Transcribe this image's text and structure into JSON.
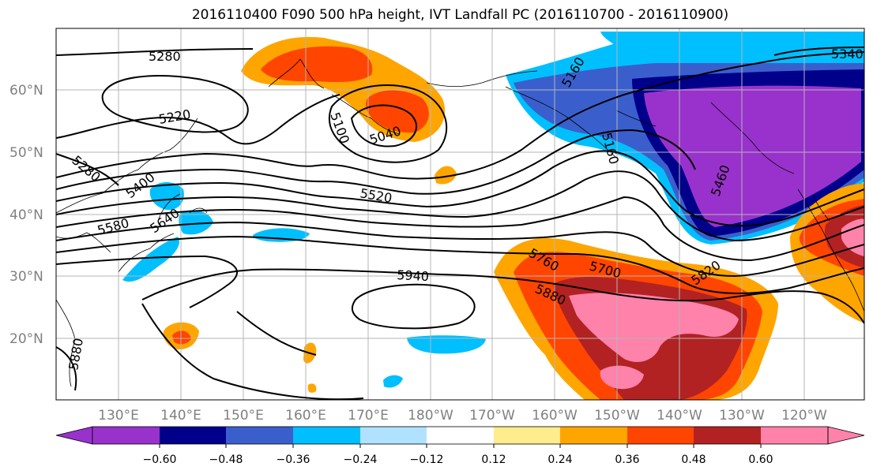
{
  "title": "2016110400 F090 500 hPa height, IVT Landfall PC (2016110700 - 2016110900)",
  "map": {
    "lat_labels": [
      "60°N",
      "50°N",
      "40°N",
      "30°N",
      "20°N"
    ],
    "lon_labels": [
      "130°E",
      "140°E",
      "150°E",
      "160°E",
      "170°E",
      "180°W",
      "170°W",
      "160°W",
      "150°W",
      "140°W",
      "130°W",
      "120°W"
    ],
    "contour_labels": [
      "5280",
      "5220",
      "5280",
      "5400",
      "5580",
      "5640",
      "5100",
      "5040",
      "5520",
      "5160",
      "5160",
      "5460",
      "5340",
      "5760",
      "5700",
      "5880",
      "5820",
      "5940",
      "5880"
    ],
    "colors": {
      "fill_neg_3": "#9932CC",
      "fill_neg_2": "#00008B",
      "fill_neg_1": "#3A5FCD",
      "fill_neg_0": "#00BFFF",
      "fill_lt_neg": "#B0E2FF",
      "fill_pos_0": "#FFEC8B",
      "fill_pos_1": "#FFA500",
      "fill_pos_2": "#FF4500",
      "fill_pos_3": "#B22222",
      "fill_pos_4": "#FF82AB"
    }
  },
  "colorbar": {
    "tick_labels": [
      "−0.60",
      "−0.48",
      "−0.36",
      "−0.24",
      "−0.12",
      "0.12",
      "0.24",
      "0.36",
      "0.48",
      "0.60"
    ],
    "colors": [
      "#9932CC",
      "#00008B",
      "#3A5FCD",
      "#00BFFF",
      "#B0E2FF",
      "#FFFFFF",
      "#FFEC8B",
      "#FFA500",
      "#FF4500",
      "#B22222",
      "#FF82AB"
    ]
  }
}
